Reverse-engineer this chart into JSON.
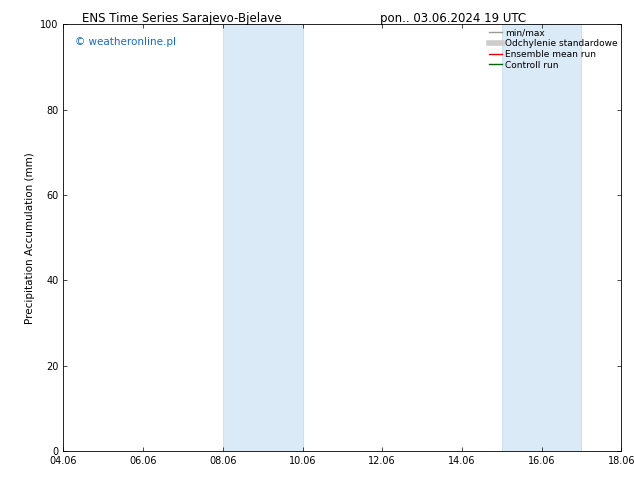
{
  "title_left": "ENS Time Series Sarajevo-Bjelave",
  "title_right": "pon.. 03.06.2024 19 UTC",
  "ylabel": "Precipitation Accumulation (mm)",
  "watermark": "© weatheronline.pl",
  "watermark_color": "#1a6bbf",
  "ylim": [
    0,
    100
  ],
  "yticks": [
    0,
    20,
    40,
    60,
    80,
    100
  ],
  "x_start": 4.06,
  "x_end": 18.06,
  "xtick_labels": [
    "04.06",
    "06.06",
    "08.06",
    "10.06",
    "12.06",
    "14.06",
    "16.06",
    "18.06"
  ],
  "xtick_positions": [
    4.06,
    6.06,
    8.06,
    10.06,
    12.06,
    14.06,
    16.06,
    18.06
  ],
  "shaded_regions": [
    {
      "x_start": 8.06,
      "x_end": 10.06
    },
    {
      "x_start": 15.06,
      "x_end": 17.06
    }
  ],
  "shade_color": "#daeaf7",
  "shade_edge_color": "#c0d8ee",
  "background_color": "#ffffff",
  "legend_items": [
    {
      "label": "min/max",
      "color": "#999999",
      "lw": 1.0
    },
    {
      "label": "Odchylenie standardowe",
      "color": "#cccccc",
      "lw": 4.0
    },
    {
      "label": "Ensemble mean run",
      "color": "#dd0000",
      "lw": 1.0
    },
    {
      "label": "Controll run",
      "color": "#006600",
      "lw": 1.0
    }
  ],
  "font_size_title": 8.5,
  "font_size_axis_label": 7.5,
  "font_size_ticks": 7.0,
  "font_size_legend": 6.5,
  "font_size_watermark": 7.5,
  "grid_color": "#e8e8e8",
  "tick_color": "#000000",
  "spine_color": "#000000"
}
